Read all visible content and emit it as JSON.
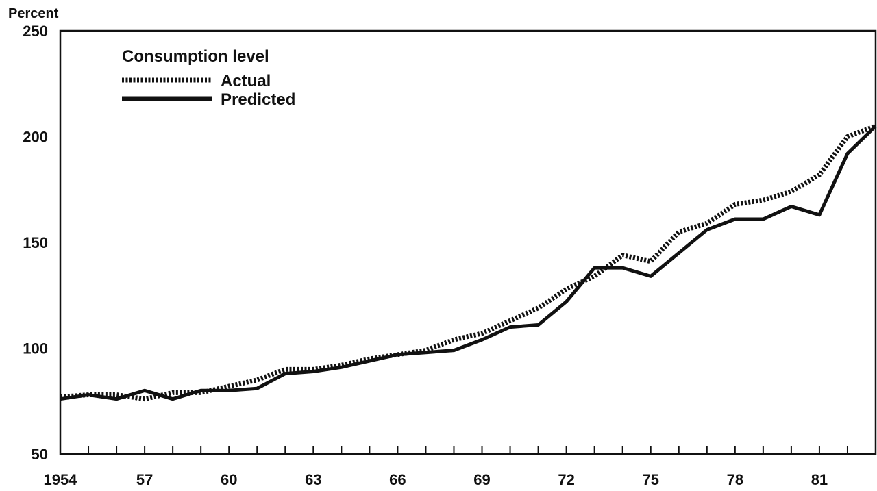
{
  "chart_data": {
    "type": "line",
    "title": "",
    "xlabel": "",
    "ylabel": "Percent",
    "xlim": [
      1954,
      1983
    ],
    "ylim": [
      50,
      250
    ],
    "x_ticks_labeled": [
      {
        "value": 1954,
        "label": "1954"
      },
      {
        "value": 1957,
        "label": "57"
      },
      {
        "value": 1960,
        "label": "60"
      },
      {
        "value": 1963,
        "label": "63"
      },
      {
        "value": 1966,
        "label": "66"
      },
      {
        "value": 1969,
        "label": "69"
      },
      {
        "value": 1972,
        "label": "72"
      },
      {
        "value": 1975,
        "label": "75"
      },
      {
        "value": 1978,
        "label": "78"
      },
      {
        "value": 1981,
        "label": "81"
      }
    ],
    "y_ticks": [
      {
        "value": 50,
        "label": "50"
      },
      {
        "value": 100,
        "label": "100"
      },
      {
        "value": 150,
        "label": "150"
      },
      {
        "value": 200,
        "label": "200"
      },
      {
        "value": 250,
        "label": "250"
      }
    ],
    "grid": false,
    "legend": {
      "title": "Consumption level",
      "placement": "top-left"
    },
    "x": [
      1954,
      1955,
      1956,
      1957,
      1958,
      1959,
      1960,
      1961,
      1962,
      1963,
      1964,
      1965,
      1966,
      1967,
      1968,
      1969,
      1970,
      1971,
      1972,
      1973,
      1974,
      1975,
      1976,
      1977,
      1978,
      1979,
      1980,
      1981,
      1982,
      1983
    ],
    "series": [
      {
        "name": "Actual",
        "style": "dotted",
        "values": [
          77,
          78,
          78,
          76,
          79,
          79,
          82,
          85,
          90,
          90,
          92,
          95,
          97,
          99,
          104,
          107,
          113,
          119,
          128,
          134,
          144,
          141,
          155,
          159,
          168,
          170,
          174,
          182,
          200,
          205
        ]
      },
      {
        "name": "Predicted",
        "style": "solid",
        "values": [
          76,
          78,
          76,
          80,
          76,
          80,
          80,
          81,
          88,
          89,
          91,
          94,
          97,
          98,
          99,
          104,
          110,
          111,
          122,
          138,
          138,
          134,
          145,
          156,
          161,
          161,
          167,
          163,
          192,
          205
        ]
      }
    ]
  }
}
